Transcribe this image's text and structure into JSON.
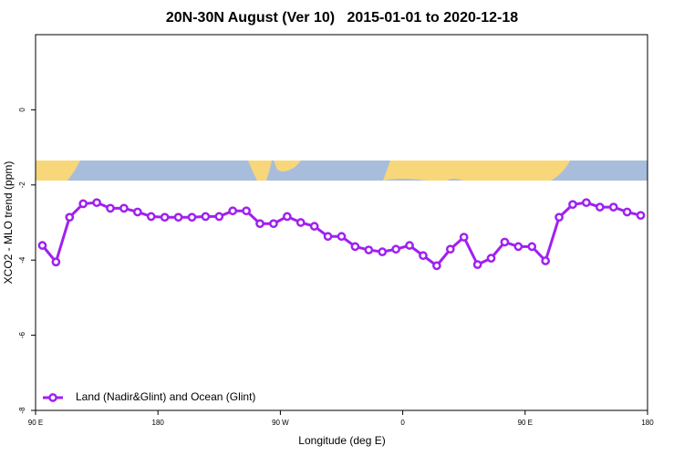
{
  "chart_data": {
    "type": "line",
    "title": "20N-30N August (Ver 10)   2015-01-01 to 2020-12-18",
    "xlabel": "Longitude (deg E)",
    "ylabel": "XCO2 - MLO trend (ppm)",
    "x": [
      95,
      105,
      115,
      125,
      135,
      145,
      155,
      165,
      175,
      185,
      195,
      205,
      215,
      225,
      235,
      245,
      255,
      265,
      275,
      285,
      295,
      305,
      315,
      325,
      335,
      345,
      355,
      365,
      375,
      385,
      395,
      405,
      415,
      425,
      435,
      445,
      455,
      465,
      475,
      485,
      495,
      505,
      515,
      525,
      535
    ],
    "series": [
      {
        "name": "Land (Nadir&Glint) and Ocean (Glint)",
        "color": "#a020f0",
        "values": [
          -3.61,
          -4.05,
          -2.86,
          -2.5,
          -2.47,
          -2.62,
          -2.62,
          -2.72,
          -2.84,
          -2.86,
          -2.86,
          -2.86,
          -2.84,
          -2.84,
          -2.69,
          -2.69,
          -3.03,
          -3.03,
          -2.84,
          -3.0,
          -3.1,
          -3.37,
          -3.37,
          -3.64,
          -3.73,
          -3.78,
          -3.71,
          -3.61,
          -3.88,
          -4.15,
          -3.71,
          -3.39,
          -4.12,
          -3.95,
          -3.52,
          -3.64,
          -3.64,
          -4.02,
          -2.86,
          -2.52,
          -2.47,
          -2.59,
          -2.59,
          -2.72,
          -2.81
        ]
      }
    ],
    "xlim": [
      90,
      540
    ],
    "xticks": [
      {
        "value": 90,
        "label": "90 E"
      },
      {
        "value": 180,
        "label": "180"
      },
      {
        "value": 270,
        "label": "90 W"
      },
      {
        "value": 360,
        "label": "0"
      },
      {
        "value": 450,
        "label": "90 E"
      },
      {
        "value": 540,
        "label": "180"
      }
    ],
    "ylim": [
      -8,
      2
    ],
    "yticks": [
      -8,
      -6,
      -4,
      -2,
      0
    ],
    "legend": "bottomleft"
  }
}
